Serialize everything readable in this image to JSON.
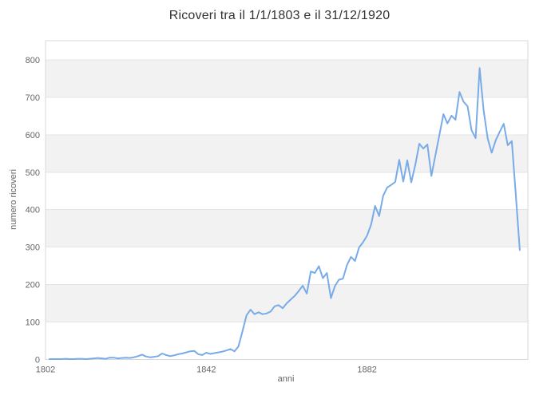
{
  "chart_data": {
    "type": "line",
    "title": "Ricoveri tra il 1/1/1803 e il 31/12/1920",
    "xlabel": "anni",
    "ylabel": "numero ricoveri",
    "legend": "none",
    "grid": "horizontal-only",
    "xlim": [
      1802,
      1922
    ],
    "ylim": [
      0,
      851
    ],
    "xticks": [
      1802,
      1842,
      1882
    ],
    "yticks": [
      0,
      100,
      200,
      300,
      400,
      500,
      600,
      700,
      800
    ],
    "alternating_bands": [
      [
        100,
        200
      ],
      [
        300,
        400
      ],
      [
        500,
        600
      ],
      [
        700,
        800
      ]
    ],
    "x": [
      1803,
      1804,
      1805,
      1806,
      1807,
      1808,
      1809,
      1810,
      1811,
      1812,
      1813,
      1814,
      1815,
      1816,
      1817,
      1818,
      1819,
      1820,
      1821,
      1822,
      1823,
      1824,
      1825,
      1826,
      1827,
      1828,
      1829,
      1830,
      1831,
      1832,
      1833,
      1834,
      1835,
      1836,
      1837,
      1838,
      1839,
      1840,
      1841,
      1842,
      1843,
      1844,
      1845,
      1846,
      1847,
      1848,
      1849,
      1850,
      1851,
      1852,
      1853,
      1854,
      1855,
      1856,
      1857,
      1858,
      1859,
      1860,
      1861,
      1862,
      1863,
      1864,
      1865,
      1866,
      1867,
      1868,
      1869,
      1870,
      1871,
      1872,
      1873,
      1874,
      1875,
      1876,
      1877,
      1878,
      1879,
      1880,
      1881,
      1882,
      1883,
      1884,
      1885,
      1886,
      1887,
      1888,
      1889,
      1890,
      1891,
      1892,
      1893,
      1894,
      1895,
      1896,
      1897,
      1898,
      1899,
      1900,
      1901,
      1902,
      1903,
      1904,
      1905,
      1906,
      1907,
      1908,
      1909,
      1910,
      1911,
      1912,
      1913,
      1914,
      1915,
      1916,
      1917,
      1918,
      1919,
      1920
    ],
    "values": [
      1,
      1,
      1,
      1,
      2,
      1,
      1,
      2,
      2,
      1,
      2,
      3,
      4,
      3,
      2,
      5,
      5,
      3,
      4,
      5,
      4,
      6,
      9,
      13,
      8,
      6,
      7,
      9,
      16,
      12,
      9,
      11,
      14,
      16,
      19,
      22,
      23,
      14,
      12,
      18,
      15,
      17,
      19,
      21,
      24,
      28,
      22,
      35,
      75,
      118,
      133,
      121,
      126,
      121,
      123,
      128,
      142,
      145,
      137,
      150,
      160,
      170,
      183,
      197,
      176,
      235,
      231,
      249,
      217,
      231,
      164,
      196,
      213,
      216,
      252,
      274,
      263,
      299,
      313,
      331,
      360,
      410,
      383,
      437,
      459,
      466,
      474,
      533,
      475,
      532,
      473,
      520,
      576,
      563,
      574,
      490,
      545,
      600,
      655,
      630,
      651,
      640,
      714,
      688,
      676,
      612,
      591,
      778,
      665,
      590,
      552,
      585,
      608,
      629,
      572,
      583,
      440,
      292
    ],
    "colors": {
      "line": "#78abe8",
      "band": "#f2f2f2",
      "grid": "#e4e4e4",
      "border": "#d8d8d8",
      "tick_text": "#666666",
      "axis_title_text": "#666666",
      "title_text": "#333333",
      "background": "#ffffff"
    }
  }
}
